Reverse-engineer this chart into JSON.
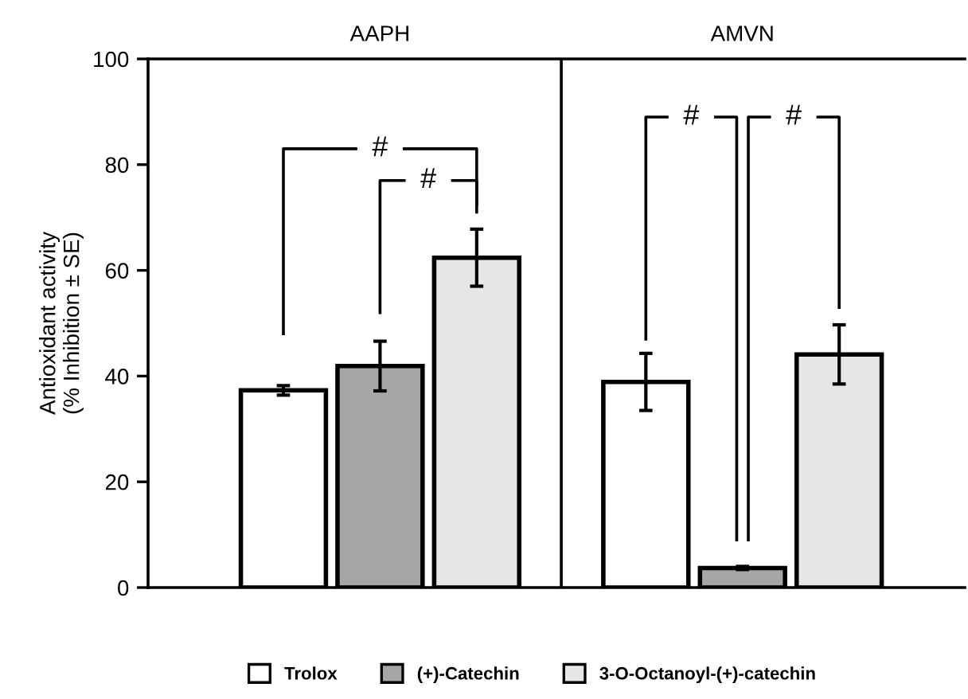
{
  "chart_data": {
    "type": "bar",
    "ylabel": "Antioxidant activity\n(% Inhibition ± SE)",
    "categories": [
      "AAPH",
      "AMVN"
    ],
    "series": [
      {
        "name": "Trolox",
        "color": "#ffffff",
        "values": [
          37.3,
          38.9
        ],
        "errors": [
          0.9,
          5.4
        ]
      },
      {
        "name": "(+)-Catechin",
        "color": "#a6a6a6",
        "values": [
          41.9,
          3.7
        ],
        "errors": [
          4.7,
          0.3
        ]
      },
      {
        "name": "3-O-Octanoyl-(+)-catechin",
        "color": "#e6e6e6",
        "values": [
          62.4,
          44.1
        ],
        "errors": [
          5.4,
          5.6
        ]
      }
    ],
    "ylim": [
      0,
      100
    ],
    "yticks": [
      0,
      20,
      40,
      60,
      80,
      100
    ],
    "legend": "bottom",
    "annotations": [
      "#",
      "#",
      "#",
      "#"
    ]
  }
}
